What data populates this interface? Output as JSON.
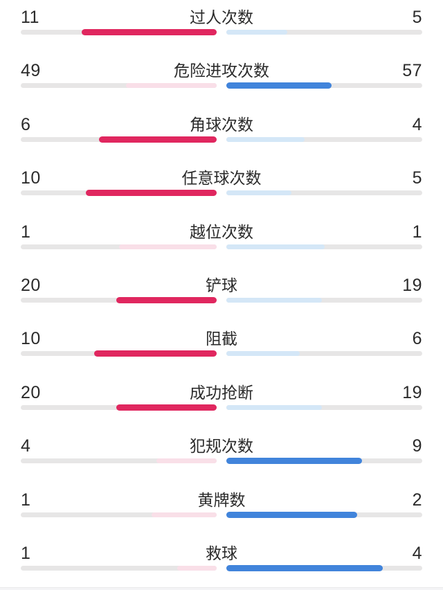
{
  "colors": {
    "home_win": "#e0275f",
    "home_lose": "#f9dfe8",
    "away_win": "#4184db",
    "away_lose": "#d4e7f7",
    "track": "#e7e6e6",
    "text": "#2b2b2b",
    "background": "#ffffff"
  },
  "chart_data": {
    "type": "bar",
    "orientation": "horizontal-paired",
    "description": "Football match statistics comparison, home (left, pink) vs away (right, blue); each bar fill is the team's share of the row total, anchored at the center; the leading team's bar is saturated, the trailing or tied team's bar is pale",
    "categories": [
      "过人次数",
      "危险进攻次数",
      "角球次数",
      "任意球次数",
      "越位次数",
      "铲球",
      "阻截",
      "成功抢断",
      "犯规次数",
      "黄牌数",
      "救球"
    ],
    "series": [
      {
        "name": "home",
        "values": [
          11,
          49,
          6,
          10,
          1,
          20,
          10,
          20,
          4,
          1,
          1
        ]
      },
      {
        "name": "away",
        "values": [
          5,
          57,
          4,
          5,
          1,
          19,
          6,
          19,
          9,
          2,
          4
        ]
      }
    ],
    "legend": "none",
    "grid": "off"
  }
}
